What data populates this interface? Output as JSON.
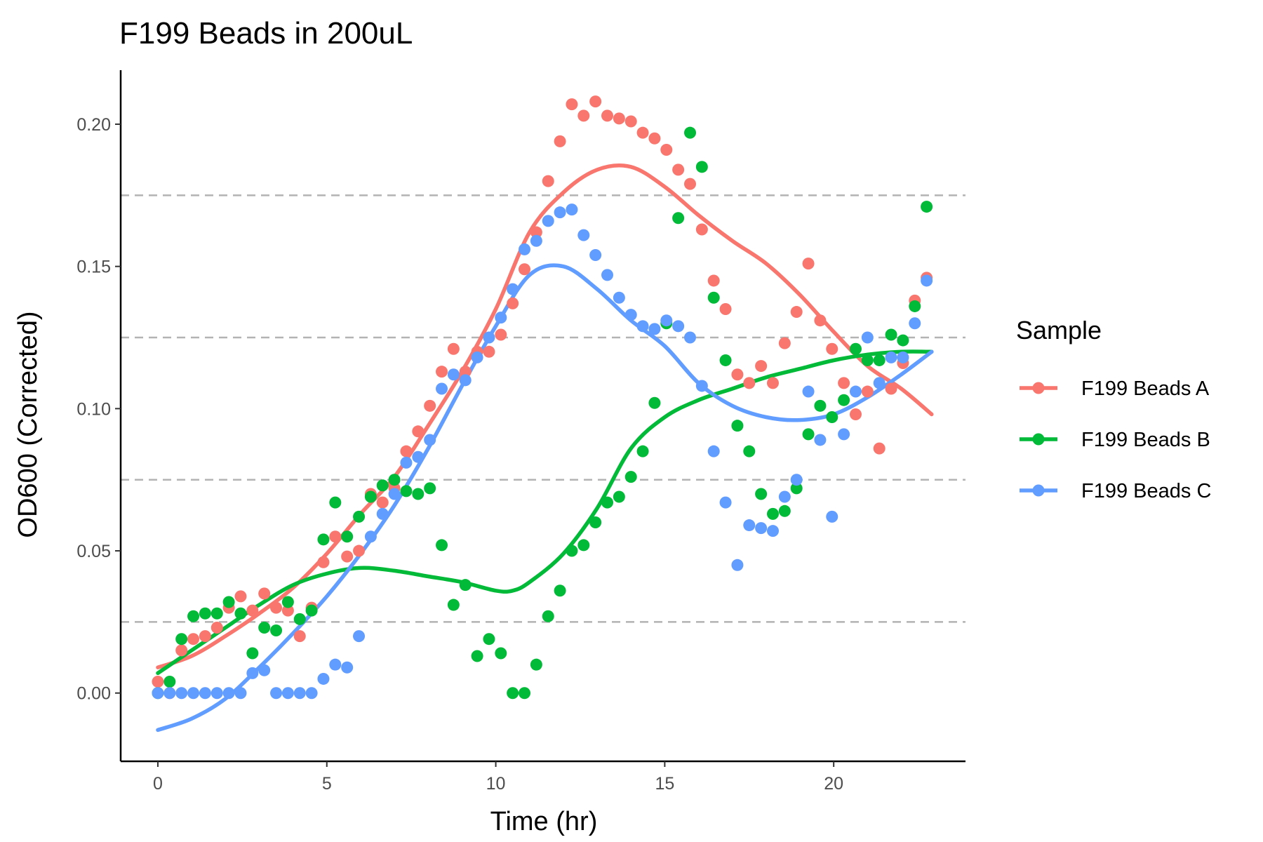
{
  "chart_data": {
    "type": "scatter",
    "title": "F199 Beads in 200uL",
    "xlabel": "Time (hr)",
    "ylabel": "OD600 (Corrected)",
    "xlim": [
      -1.1,
      23.9
    ],
    "ylim": [
      -0.024,
      0.219
    ],
    "xticks": [
      0,
      5,
      10,
      15,
      20
    ],
    "xtick_labels": [
      "0",
      "5",
      "10",
      "15",
      "20"
    ],
    "yticks": [
      0.0,
      0.05,
      0.1,
      0.15,
      0.2
    ],
    "ytick_labels": [
      "0.00",
      "0.05",
      "0.10",
      "0.15",
      "0.20"
    ],
    "hlines": [
      0.025,
      0.075,
      0.125,
      0.175
    ],
    "grid": false,
    "legend": {
      "title": "Sample",
      "position": "right"
    },
    "series": [
      {
        "name": "F199 Beads A",
        "color": "#F8766D",
        "points": [
          [
            0,
            0.004
          ],
          [
            0.35,
            0.0
          ],
          [
            0.7,
            0.015
          ],
          [
            1.05,
            0.019
          ],
          [
            1.4,
            0.02
          ],
          [
            1.75,
            0.023
          ],
          [
            2.1,
            0.03
          ],
          [
            2.45,
            0.034
          ],
          [
            2.8,
            0.029
          ],
          [
            3.15,
            0.035
          ],
          [
            3.5,
            0.03
          ],
          [
            3.85,
            0.029
          ],
          [
            4.2,
            0.02
          ],
          [
            4.55,
            0.03
          ],
          [
            4.9,
            0.046
          ],
          [
            5.25,
            0.055
          ],
          [
            5.6,
            0.048
          ],
          [
            5.95,
            0.05
          ],
          [
            6.3,
            0.07
          ],
          [
            6.65,
            0.067
          ],
          [
            7.0,
            0.072
          ],
          [
            7.35,
            0.085
          ],
          [
            7.7,
            0.092
          ],
          [
            8.05,
            0.101
          ],
          [
            8.4,
            0.113
          ],
          [
            8.75,
            0.121
          ],
          [
            9.1,
            0.113
          ],
          [
            9.45,
            0.12
          ],
          [
            9.8,
            0.12
          ],
          [
            10.15,
            0.126
          ],
          [
            10.5,
            0.137
          ],
          [
            10.85,
            0.149
          ],
          [
            11.2,
            0.162
          ],
          [
            11.55,
            0.18
          ],
          [
            11.9,
            0.194
          ],
          [
            12.25,
            0.207
          ],
          [
            12.6,
            0.203
          ],
          [
            12.95,
            0.208
          ],
          [
            13.3,
            0.203
          ],
          [
            13.65,
            0.202
          ],
          [
            14.0,
            0.201
          ],
          [
            14.35,
            0.197
          ],
          [
            14.7,
            0.195
          ],
          [
            15.05,
            0.191
          ],
          [
            15.4,
            0.184
          ],
          [
            15.75,
            0.179
          ],
          [
            16.1,
            0.163
          ],
          [
            16.45,
            0.145
          ],
          [
            16.8,
            0.135
          ],
          [
            17.15,
            0.112
          ],
          [
            17.5,
            0.109
          ],
          [
            17.85,
            0.115
          ],
          [
            18.2,
            0.109
          ],
          [
            18.55,
            0.123
          ],
          [
            18.9,
            0.134
          ],
          [
            19.25,
            0.151
          ],
          [
            19.6,
            0.131
          ],
          [
            19.95,
            0.121
          ],
          [
            20.3,
            0.109
          ],
          [
            20.65,
            0.098
          ],
          [
            21.0,
            0.106
          ],
          [
            21.35,
            0.086
          ],
          [
            21.7,
            0.107
          ],
          [
            22.05,
            0.116
          ],
          [
            22.4,
            0.138
          ],
          [
            22.75,
            0.146
          ]
        ],
        "fit": [
          [
            0,
            0.009
          ],
          [
            1,
            0.013
          ],
          [
            2,
            0.02
          ],
          [
            3,
            0.028
          ],
          [
            4,
            0.037
          ],
          [
            5,
            0.049
          ],
          [
            6,
            0.063
          ],
          [
            7,
            0.076
          ],
          [
            8,
            0.094
          ],
          [
            9,
            0.113
          ],
          [
            10,
            0.135
          ],
          [
            11,
            0.162
          ],
          [
            12,
            0.176
          ],
          [
            13,
            0.184
          ],
          [
            14,
            0.185
          ],
          [
            15,
            0.178
          ],
          [
            16,
            0.168
          ],
          [
            17,
            0.159
          ],
          [
            18,
            0.151
          ],
          [
            19,
            0.14
          ],
          [
            20,
            0.127
          ],
          [
            21,
            0.115
          ],
          [
            22,
            0.107
          ],
          [
            22.9,
            0.098
          ]
        ]
      },
      {
        "name": "F199 Beads B",
        "color": "#00BA38",
        "points": [
          [
            0,
            0.0
          ],
          [
            0.35,
            0.004
          ],
          [
            0.7,
            0.019
          ],
          [
            1.05,
            0.027
          ],
          [
            1.4,
            0.028
          ],
          [
            1.75,
            0.028
          ],
          [
            2.1,
            0.032
          ],
          [
            2.45,
            0.028
          ],
          [
            2.8,
            0.014
          ],
          [
            3.15,
            0.023
          ],
          [
            3.5,
            0.022
          ],
          [
            3.85,
            0.032
          ],
          [
            4.2,
            0.026
          ],
          [
            4.55,
            0.029
          ],
          [
            4.9,
            0.054
          ],
          [
            5.25,
            0.067
          ],
          [
            5.6,
            0.055
          ],
          [
            5.95,
            0.062
          ],
          [
            6.3,
            0.069
          ],
          [
            6.65,
            0.073
          ],
          [
            7.0,
            0.075
          ],
          [
            7.35,
            0.071
          ],
          [
            7.7,
            0.07
          ],
          [
            8.05,
            0.072
          ],
          [
            8.4,
            0.052
          ],
          [
            8.75,
            0.031
          ],
          [
            9.1,
            0.038
          ],
          [
            9.45,
            0.013
          ],
          [
            9.8,
            0.019
          ],
          [
            10.15,
            0.014
          ],
          [
            10.5,
            0.0
          ],
          [
            10.85,
            0.0
          ],
          [
            11.2,
            0.01
          ],
          [
            11.55,
            0.027
          ],
          [
            11.9,
            0.036
          ],
          [
            12.25,
            0.05
          ],
          [
            12.6,
            0.052
          ],
          [
            12.95,
            0.06
          ],
          [
            13.3,
            0.067
          ],
          [
            13.65,
            0.069
          ],
          [
            14.0,
            0.076
          ],
          [
            14.35,
            0.085
          ],
          [
            14.7,
            0.102
          ],
          [
            15.05,
            0.13
          ],
          [
            15.4,
            0.167
          ],
          [
            15.75,
            0.197
          ],
          [
            16.1,
            0.185
          ],
          [
            16.45,
            0.139
          ],
          [
            16.8,
            0.117
          ],
          [
            17.15,
            0.094
          ],
          [
            17.5,
            0.085
          ],
          [
            17.85,
            0.07
          ],
          [
            18.2,
            0.063
          ],
          [
            18.55,
            0.064
          ],
          [
            18.9,
            0.072
          ],
          [
            19.25,
            0.091
          ],
          [
            19.6,
            0.101
          ],
          [
            19.95,
            0.097
          ],
          [
            20.3,
            0.103
          ],
          [
            20.65,
            0.121
          ],
          [
            21.0,
            0.117
          ],
          [
            21.35,
            0.117
          ],
          [
            21.7,
            0.126
          ],
          [
            22.05,
            0.124
          ],
          [
            22.4,
            0.136
          ],
          [
            22.75,
            0.171
          ]
        ],
        "fit": [
          [
            0,
            0.007
          ],
          [
            1,
            0.015
          ],
          [
            2,
            0.023
          ],
          [
            3,
            0.031
          ],
          [
            4,
            0.038
          ],
          [
            5,
            0.042
          ],
          [
            6,
            0.044
          ],
          [
            7,
            0.043
          ],
          [
            8,
            0.041
          ],
          [
            9,
            0.039
          ],
          [
            10,
            0.036
          ],
          [
            10.5,
            0.036
          ],
          [
            11,
            0.039
          ],
          [
            12,
            0.049
          ],
          [
            13,
            0.065
          ],
          [
            14,
            0.086
          ],
          [
            15,
            0.097
          ],
          [
            16,
            0.103
          ],
          [
            17,
            0.107
          ],
          [
            18,
            0.111
          ],
          [
            19,
            0.114
          ],
          [
            20,
            0.117
          ],
          [
            21,
            0.119
          ],
          [
            22,
            0.12
          ],
          [
            22.9,
            0.12
          ]
        ]
      },
      {
        "name": "F199 Beads C",
        "color": "#619CFF",
        "points": [
          [
            0,
            0.0
          ],
          [
            0.35,
            0.0
          ],
          [
            0.7,
            0.0
          ],
          [
            1.05,
            0.0
          ],
          [
            1.4,
            0.0
          ],
          [
            1.75,
            0.0
          ],
          [
            2.1,
            0.0
          ],
          [
            2.45,
            0.0
          ],
          [
            2.8,
            0.007
          ],
          [
            3.15,
            0.008
          ],
          [
            3.5,
            0.0
          ],
          [
            3.85,
            0.0
          ],
          [
            4.2,
            0.0
          ],
          [
            4.55,
            0.0
          ],
          [
            4.9,
            0.005
          ],
          [
            5.25,
            0.01
          ],
          [
            5.6,
            0.009
          ],
          [
            5.95,
            0.02
          ],
          [
            6.3,
            0.055
          ],
          [
            6.65,
            0.063
          ],
          [
            7.0,
            0.07
          ],
          [
            7.35,
            0.081
          ],
          [
            7.7,
            0.083
          ],
          [
            8.05,
            0.089
          ],
          [
            8.4,
            0.107
          ],
          [
            8.75,
            0.112
          ],
          [
            9.1,
            0.11
          ],
          [
            9.45,
            0.118
          ],
          [
            9.8,
            0.125
          ],
          [
            10.15,
            0.132
          ],
          [
            10.5,
            0.142
          ],
          [
            10.85,
            0.156
          ],
          [
            11.2,
            0.159
          ],
          [
            11.55,
            0.166
          ],
          [
            11.9,
            0.169
          ],
          [
            12.25,
            0.17
          ],
          [
            12.6,
            0.161
          ],
          [
            12.95,
            0.154
          ],
          [
            13.3,
            0.147
          ],
          [
            13.65,
            0.139
          ],
          [
            14.0,
            0.133
          ],
          [
            14.35,
            0.129
          ],
          [
            14.7,
            0.128
          ],
          [
            15.05,
            0.131
          ],
          [
            15.4,
            0.129
          ],
          [
            15.75,
            0.125
          ],
          [
            16.1,
            0.108
          ],
          [
            16.45,
            0.085
          ],
          [
            16.8,
            0.067
          ],
          [
            17.15,
            0.045
          ],
          [
            17.5,
            0.059
          ],
          [
            17.85,
            0.058
          ],
          [
            18.2,
            0.057
          ],
          [
            18.55,
            0.069
          ],
          [
            18.9,
            0.075
          ],
          [
            19.25,
            0.106
          ],
          [
            19.6,
            0.089
          ],
          [
            19.95,
            0.062
          ],
          [
            20.3,
            0.091
          ],
          [
            20.65,
            0.106
          ],
          [
            21.0,
            0.125
          ],
          [
            21.35,
            0.109
          ],
          [
            21.7,
            0.118
          ],
          [
            22.05,
            0.118
          ],
          [
            22.4,
            0.13
          ],
          [
            22.75,
            0.145
          ]
        ],
        "fit": [
          [
            0,
            -0.013
          ],
          [
            1,
            -0.009
          ],
          [
            2,
            -0.002
          ],
          [
            3,
            0.009
          ],
          [
            4,
            0.021
          ],
          [
            5,
            0.034
          ],
          [
            6,
            0.049
          ],
          [
            7,
            0.066
          ],
          [
            8,
            0.086
          ],
          [
            9,
            0.108
          ],
          [
            10,
            0.129
          ],
          [
            11,
            0.147
          ],
          [
            12,
            0.15
          ],
          [
            13,
            0.142
          ],
          [
            14,
            0.131
          ],
          [
            15,
            0.122
          ],
          [
            16,
            0.109
          ],
          [
            17,
            0.101
          ],
          [
            18,
            0.097
          ],
          [
            19,
            0.096
          ],
          [
            20,
            0.098
          ],
          [
            21,
            0.104
          ],
          [
            22,
            0.112
          ],
          [
            22.9,
            0.12
          ]
        ]
      }
    ]
  }
}
